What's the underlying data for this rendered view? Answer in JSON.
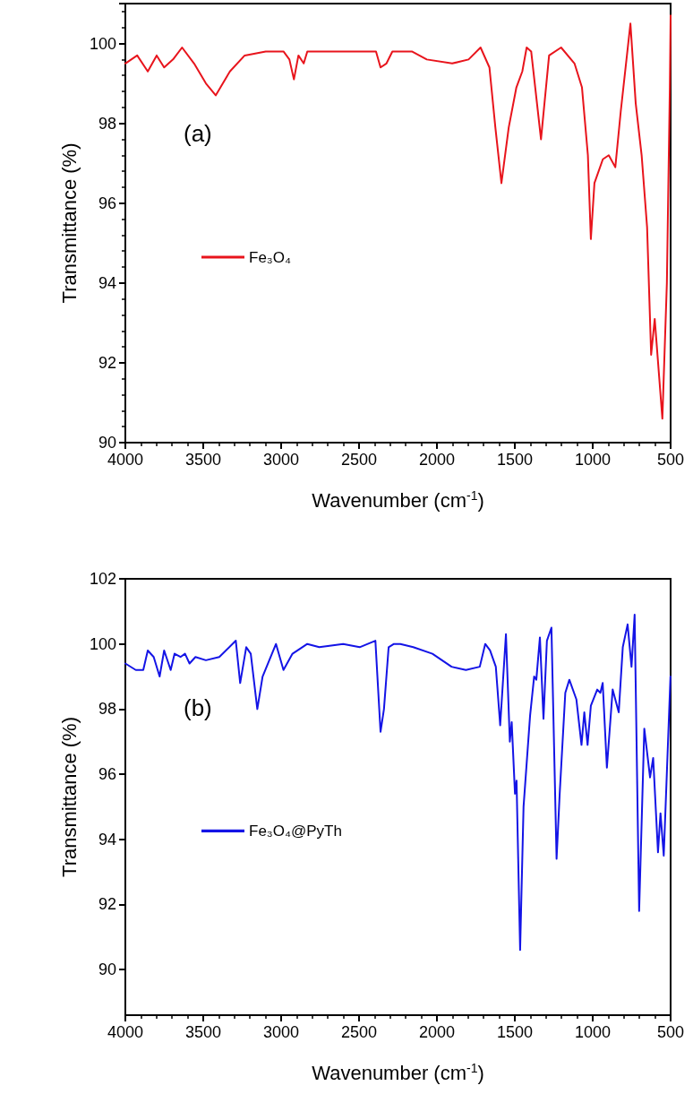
{
  "chart_data": [
    {
      "type": "line",
      "xlabel": "Wavenumber (cm$^{-1}$)",
      "ylabel": "Transmittance (%)",
      "annotations": [
        "(a)"
      ],
      "xlim": [
        4000,
        500
      ],
      "xticks": [
        4000,
        3500,
        3000,
        2500,
        2000,
        1500,
        1000,
        500
      ],
      "ylim": [
        90,
        101
      ],
      "yticks": [
        90,
        92,
        94,
        96,
        98,
        100
      ],
      "grid": false,
      "legend": "left",
      "marker": "none",
      "line_style": "solid",
      "series": [
        {
          "name": "Fe₃O₄",
          "color": "#e8141c",
          "x": [
            4000,
            3924,
            3856,
            3799,
            3751,
            3694,
            3636,
            3559,
            3483,
            3420,
            3329,
            3234,
            3099,
            2985,
            2947,
            2918,
            2889,
            2855,
            2832,
            2659,
            2391,
            2362,
            2324,
            2286,
            2161,
            2065,
            1902,
            1797,
            1720,
            1663,
            1625,
            1586,
            1539,
            1490,
            1452,
            1424,
            1395,
            1332,
            1280,
            1203,
            1117,
            1069,
            1031,
            1012,
            989,
            935,
            897,
            855,
            820,
            758,
            724,
            686,
            651,
            625,
            602,
            553,
            524,
            505,
            500
          ],
          "values": [
            99.5,
            99.7,
            99.3,
            99.7,
            99.4,
            99.6,
            99.9,
            99.5,
            99.0,
            98.7,
            99.3,
            99.7,
            99.8,
            99.8,
            99.6,
            99.1,
            99.7,
            99.5,
            99.8,
            99.8,
            99.8,
            99.4,
            99.5,
            99.8,
            99.8,
            99.6,
            99.5,
            99.6,
            99.9,
            99.4,
            97.9,
            96.5,
            97.9,
            98.9,
            99.3,
            99.9,
            99.8,
            97.6,
            99.7,
            99.9,
            99.5,
            98.9,
            97.2,
            95.1,
            96.5,
            97.1,
            97.2,
            96.9,
            98.3,
            100.5,
            98.5,
            97.2,
            95.4,
            92.2,
            93.1,
            90.6,
            94.0,
            98.9,
            100.7
          ]
        }
      ]
    },
    {
      "type": "line",
      "xlabel": "Wavenumber (cm$^{-1}$)",
      "ylabel": "Transmittance (%)",
      "annotations": [
        "(b)"
      ],
      "xlim": [
        4000,
        500
      ],
      "xticks": [
        4000,
        3500,
        3000,
        2500,
        2000,
        1500,
        1000,
        500
      ],
      "ylim": [
        88.6,
        102
      ],
      "yticks": [
        90,
        92,
        94,
        96,
        98,
        100,
        102
      ],
      "grid": false,
      "legend": "left",
      "marker": "none",
      "line_style": "solid",
      "series": [
        {
          "name": "Fe₃O₄@PyTh",
          "color": "#1414e6",
          "x": [
            4000,
            3933,
            3885,
            3856,
            3818,
            3780,
            3751,
            3709,
            3684,
            3646,
            3617,
            3588,
            3550,
            3483,
            3397,
            3291,
            3263,
            3224,
            3195,
            3153,
            3119,
            3033,
            2985,
            2927,
            2832,
            2755,
            2602,
            2496,
            2395,
            2362,
            2340,
            2310,
            2276,
            2235,
            2152,
            2029,
            1906,
            1814,
            1725,
            1690,
            1659,
            1622,
            1594,
            1557,
            1532,
            1520,
            1499,
            1489,
            1466,
            1444,
            1402,
            1376,
            1362,
            1339,
            1316,
            1294,
            1265,
            1232,
            1212,
            1176,
            1150,
            1105,
            1072,
            1054,
            1033,
            1012,
            971,
            951,
            936,
            909,
            872,
            833,
            807,
            776,
            751,
            731,
            702,
            669,
            632,
            612,
            581,
            565,
            544,
            501
          ],
          "values": [
            99.4,
            99.2,
            99.2,
            99.8,
            99.6,
            99.0,
            99.8,
            99.2,
            99.7,
            99.6,
            99.7,
            99.4,
            99.6,
            99.5,
            99.6,
            100.1,
            98.8,
            99.9,
            99.7,
            98.0,
            99.0,
            100.0,
            99.2,
            99.7,
            100.0,
            99.9,
            100.0,
            99.9,
            100.1,
            97.3,
            98.0,
            99.9,
            100.0,
            100.0,
            99.9,
            99.7,
            99.3,
            99.2,
            99.3,
            100.0,
            99.8,
            99.3,
            97.5,
            100.3,
            97.0,
            97.6,
            95.4,
            95.8,
            90.6,
            95.0,
            97.8,
            99.0,
            98.9,
            100.2,
            97.7,
            100.1,
            100.5,
            93.4,
            95.4,
            98.5,
            98.9,
            98.3,
            96.9,
            97.9,
            96.9,
            98.1,
            98.6,
            98.5,
            98.8,
            96.2,
            98.6,
            97.9,
            99.9,
            100.6,
            99.3,
            100.9,
            91.8,
            97.4,
            95.9,
            96.5,
            93.6,
            94.8,
            93.5,
            99.0
          ]
        }
      ]
    }
  ]
}
